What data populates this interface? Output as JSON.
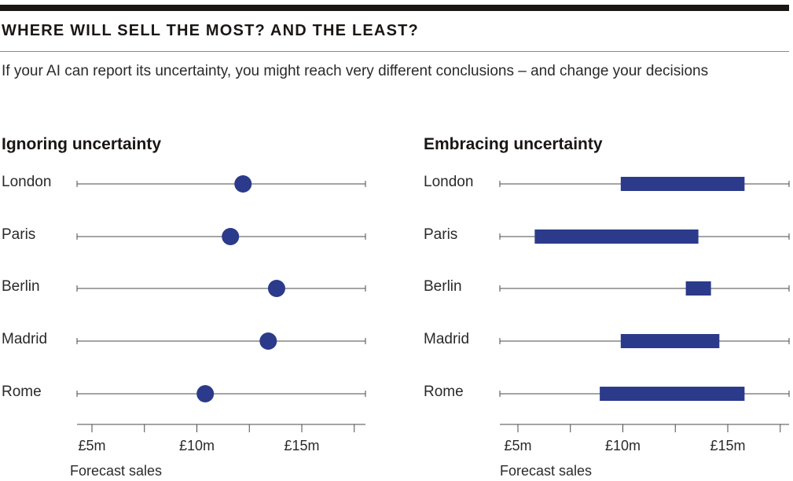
{
  "header": {
    "title": "WHERE WILL SELL THE MOST? AND THE LEAST?",
    "subtitle": "If your AI can report its uncertainty, you might reach very different conclusions – and change your decisions"
  },
  "colors": {
    "mark": "#2b3a8a",
    "line": "#4a4a4a",
    "rule": "#1a1614"
  },
  "chart_data": [
    {
      "type": "scatter",
      "title": "Ignoring uncertainty",
      "xlabel": "Forecast sales",
      "categories": [
        "London",
        "Paris",
        "Berlin",
        "Madrid",
        "Rome"
      ],
      "values": [
        12.2,
        11.6,
        13.8,
        13.4,
        10.4
      ],
      "xticks": [
        5,
        7.5,
        10,
        12.5,
        15,
        17.5
      ],
      "xtick_labels": [
        "£5m",
        "",
        "£10m",
        "",
        "£15m",
        ""
      ],
      "xlim": [
        4.3,
        18
      ],
      "unit": "£m"
    },
    {
      "type": "bar",
      "title": "Embracing uncertainty",
      "xlabel": "Forecast sales",
      "categories": [
        "London",
        "Paris",
        "Berlin",
        "Madrid",
        "Rome"
      ],
      "ranges": [
        [
          9.9,
          15.8
        ],
        [
          5.8,
          13.6
        ],
        [
          13.0,
          14.2
        ],
        [
          9.9,
          14.6
        ],
        [
          8.9,
          15.8
        ]
      ],
      "xticks": [
        5,
        7.5,
        10,
        12.5,
        15,
        17.5
      ],
      "xtick_labels": [
        "£5m",
        "",
        "£10m",
        "",
        "£15m",
        ""
      ],
      "xlim": [
        4.3,
        18
      ],
      "unit": "£m"
    }
  ]
}
